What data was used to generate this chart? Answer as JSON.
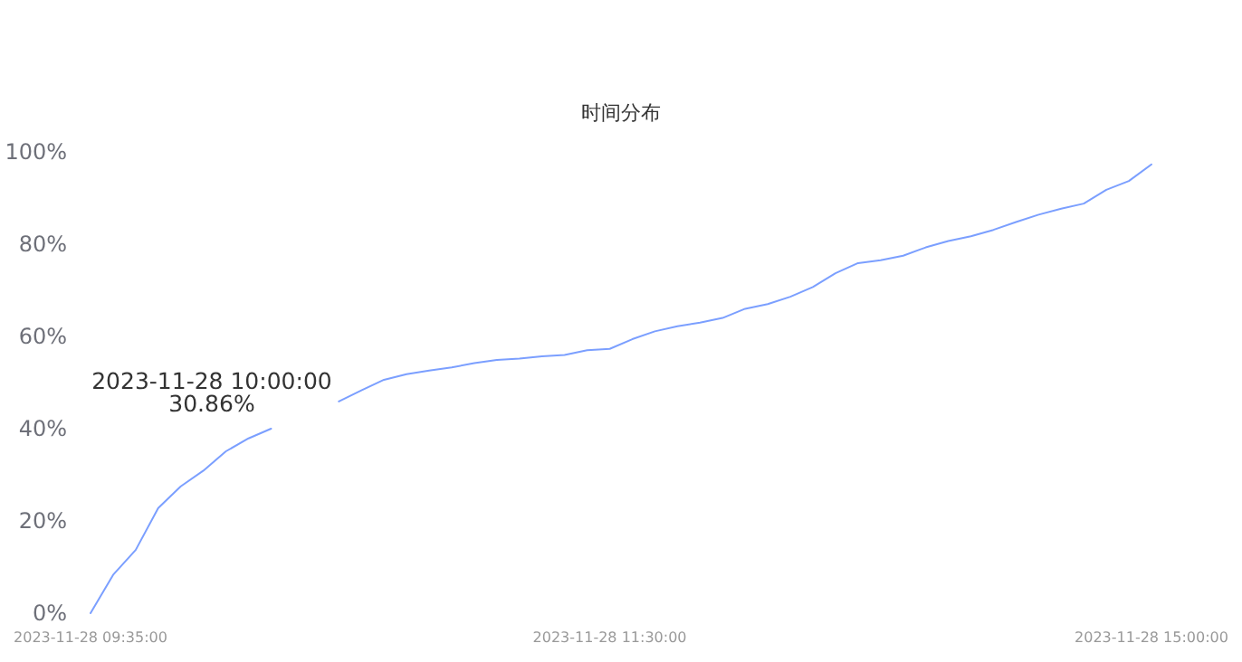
{
  "chart_data": {
    "type": "line",
    "title": "时间分布",
    "categories": [
      "2023-11-28 09:35:00",
      null,
      null,
      null,
      null,
      null,
      null,
      null,
      null,
      null,
      null,
      null,
      null,
      null,
      null,
      null,
      null,
      null,
      null,
      null,
      null,
      null,
      null,
      "2023-11-28 11:30:00",
      null,
      null,
      null,
      null,
      null,
      null,
      null,
      null,
      null,
      null,
      null,
      null,
      null,
      null,
      null,
      null,
      null,
      null,
      null,
      null,
      null,
      null,
      null,
      "2023-11-28 15:00:00"
    ],
    "series": [
      {
        "color": "#7b9fff",
        "values": [
          0,
          8.3,
          13.7,
          22.8,
          27.5,
          30.9,
          35.1,
          37.9,
          40,
          null,
          null,
          45.9,
          48.3,
          50.6,
          51.8,
          52.6,
          53.3,
          54.2,
          54.9,
          55.2,
          55.7,
          56,
          57,
          57.3,
          59.4,
          61.1,
          62.2,
          63,
          64,
          66,
          67,
          68.6,
          70.7,
          73.7,
          75.9,
          76.5,
          77.5,
          79.3,
          80.7,
          81.7,
          83.1,
          84.8,
          86.4,
          87.7,
          88.8,
          91.8,
          93.7,
          97.3
        ]
      }
    ],
    "ylim": [
      0,
      100
    ],
    "yticks": [
      {
        "value": 0,
        "label": "0%"
      },
      {
        "value": 20,
        "label": "20%"
      },
      {
        "value": 40,
        "label": "40%"
      },
      {
        "value": 60,
        "label": "60%"
      },
      {
        "value": 80,
        "label": "80%"
      },
      {
        "value": 100,
        "label": "100%"
      }
    ],
    "annotations": [
      "2023-11-28 10:00:00\n30.86%"
    ]
  }
}
